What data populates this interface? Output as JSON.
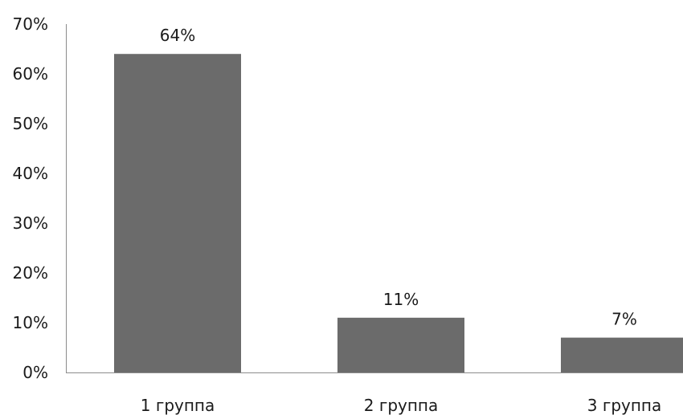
{
  "chart_data": {
    "type": "bar",
    "categories": [
      "1 группа",
      "2 группа",
      "3 группа"
    ],
    "values": [
      64,
      11,
      7
    ],
    "data_labels": [
      "64%",
      "11%",
      "7%"
    ],
    "ylim": [
      0,
      70
    ],
    "y_ticks": [
      0,
      10,
      20,
      30,
      40,
      50,
      60,
      70
    ],
    "y_tick_labels": [
      "0%",
      "10%",
      "20%",
      "30%",
      "40%",
      "50%",
      "60%",
      "70%"
    ],
    "grid": false,
    "legend": "none",
    "bar_color": "#6b6b6b"
  }
}
